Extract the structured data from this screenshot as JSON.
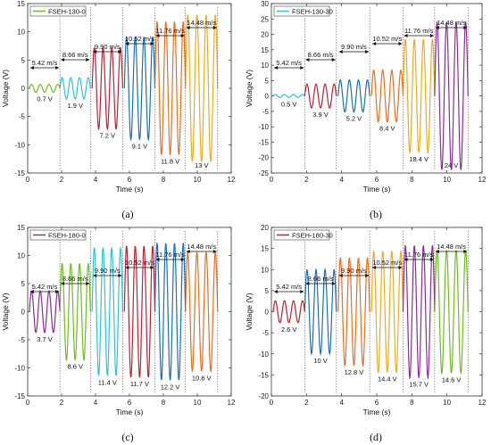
{
  "chart_data": [
    {
      "id": "a",
      "type": "line",
      "caption": "(a)",
      "legend": "FSEH-130-0",
      "xlabel": "Time (s)",
      "ylabel": "Voltage (V)",
      "xlim": [
        0,
        12
      ],
      "ylim": [
        -15,
        15
      ],
      "xticks": [
        "0",
        "2",
        "4",
        "6",
        "8",
        "10",
        "12"
      ],
      "yticks": [
        "-15",
        "-10",
        "-5",
        "0",
        "5",
        "10",
        "15"
      ],
      "grid": false,
      "legend_position": "top-left",
      "segments": [
        {
          "wind": "5.42 m/s",
          "t_start": 0.1,
          "t_end": 1.9,
          "amplitude_label": "0.7 V",
          "amplitude": 0.7,
          "color": "#6cbf1d"
        },
        {
          "wind": "8.66 m/s",
          "t_start": 1.9,
          "t_end": 3.7,
          "amplitude_label": "1.9 V",
          "amplitude": 1.9,
          "color": "#2cc4dd"
        },
        {
          "wind": "9.90 m/s",
          "t_start": 3.8,
          "t_end": 5.6,
          "amplitude_label": "7.2 V",
          "amplitude": 7.2,
          "color": "#c61e2f"
        },
        {
          "wind": "10.52 m/s",
          "t_start": 5.7,
          "t_end": 7.5,
          "amplitude_label": "9.1 V",
          "amplitude": 9.1,
          "color": "#1a6fbd"
        },
        {
          "wind": "11.76 m/s",
          "t_start": 7.5,
          "t_end": 9.3,
          "amplitude_label": "11.8 V",
          "amplitude": 11.8,
          "color": "#f26b1d"
        },
        {
          "wind": "14.48 m/s",
          "t_start": 9.3,
          "t_end": 11.2,
          "amplitude_label": "13 V",
          "amplitude": 13,
          "color": "#f2a91d"
        }
      ]
    },
    {
      "id": "b",
      "type": "line",
      "caption": "(b)",
      "legend": "FSEH-130-30",
      "xlabel": "Time (s)",
      "ylabel": "Voltage (V)",
      "xlim": [
        0,
        12
      ],
      "ylim": [
        -25,
        30
      ],
      "xticks": [
        "0",
        "2",
        "4",
        "6",
        "8",
        "10",
        "12"
      ],
      "yticks": [
        "-25",
        "-20",
        "-15",
        "-10",
        "-5",
        "0",
        "5",
        "10",
        "15",
        "20",
        "25",
        "30"
      ],
      "grid": false,
      "legend_position": "top-left",
      "segments": [
        {
          "wind": "5.42 m/s",
          "t_start": 0.1,
          "t_end": 1.9,
          "amplitude_label": "0.5 V",
          "amplitude": 0.5,
          "color": "#2cc4dd"
        },
        {
          "wind": "8.66 m/s",
          "t_start": 1.9,
          "t_end": 3.7,
          "amplitude_label": "3.9 V",
          "amplitude": 3.9,
          "color": "#c61e2f"
        },
        {
          "wind": "9.90 m/s",
          "t_start": 3.8,
          "t_end": 5.6,
          "amplitude_label": "5.2 V",
          "amplitude": 5.2,
          "color": "#1a6fbd"
        },
        {
          "wind": "10.52 m/s",
          "t_start": 5.7,
          "t_end": 7.5,
          "amplitude_label": "8.4 V",
          "amplitude": 8.4,
          "color": "#f26b1d"
        },
        {
          "wind": "11.76 m/s",
          "t_start": 7.5,
          "t_end": 9.3,
          "amplitude_label": "18.4 V",
          "amplitude": 18.4,
          "color": "#f2a91d"
        },
        {
          "wind": "14.48 m/s",
          "t_start": 9.3,
          "t_end": 11.2,
          "amplitude_label": "24 V",
          "amplitude": 24,
          "color": "#8e2a9c"
        }
      ]
    },
    {
      "id": "c",
      "type": "line",
      "caption": "(c)",
      "legend": "FSEH-180-0",
      "xlabel": "Time (s)",
      "ylabel": "Voltage (V)",
      "xlim": [
        0,
        12
      ],
      "ylim": [
        -15,
        15
      ],
      "xticks": [
        "0",
        "2",
        "4",
        "6",
        "8",
        "10",
        "12"
      ],
      "yticks": [
        "-15",
        "-10",
        "-5",
        "0",
        "5",
        "10",
        "15"
      ],
      "grid": false,
      "legend_position": "top-left",
      "segments": [
        {
          "wind": "5.42 m/s",
          "t_start": 0.1,
          "t_end": 1.9,
          "amplitude_label": "3.7 V",
          "amplitude": 3.7,
          "color": "#8e2a9c"
        },
        {
          "wind": "8.66 m/s",
          "t_start": 1.9,
          "t_end": 3.7,
          "amplitude_label": "8.6 V",
          "amplitude": 8.6,
          "color": "#6cbf1d"
        },
        {
          "wind": "9.90 m/s",
          "t_start": 3.8,
          "t_end": 5.6,
          "amplitude_label": "11.4 V",
          "amplitude": 11.4,
          "color": "#2cc4dd"
        },
        {
          "wind": "10.52 m/s",
          "t_start": 5.7,
          "t_end": 7.5,
          "amplitude_label": "11.7 V",
          "amplitude": 11.7,
          "color": "#c61e2f"
        },
        {
          "wind": "11.76 m/s",
          "t_start": 7.5,
          "t_end": 9.3,
          "amplitude_label": "12.2 V",
          "amplitude": 12.2,
          "color": "#1a6fbd"
        },
        {
          "wind": "14.48 m/s",
          "t_start": 9.3,
          "t_end": 11.2,
          "amplitude_label": "10.6 V",
          "amplitude": 10.6,
          "color": "#f26b1d"
        }
      ]
    },
    {
      "id": "d",
      "type": "line",
      "caption": "(d)",
      "legend": "FSEH-180-30",
      "xlabel": "Time (s)",
      "ylabel": "Voltage (V)",
      "xlim": [
        0,
        12
      ],
      "ylim": [
        -20,
        20
      ],
      "xticks": [
        "0",
        "2",
        "4",
        "6",
        "8",
        "10",
        "12"
      ],
      "yticks": [
        "-20",
        "-15",
        "-10",
        "-5",
        "0",
        "5",
        "10",
        "15",
        "20"
      ],
      "grid": false,
      "legend_position": "top-left",
      "segments": [
        {
          "wind": "5.42 m/s",
          "t_start": 0.1,
          "t_end": 1.9,
          "amplitude_label": "2.6 V",
          "amplitude": 2.6,
          "color": "#c61e2f"
        },
        {
          "wind": "8.66 m/s",
          "t_start": 1.9,
          "t_end": 3.7,
          "amplitude_label": "10 V",
          "amplitude": 10,
          "color": "#1a6fbd"
        },
        {
          "wind": "9.90 m/s",
          "t_start": 3.8,
          "t_end": 5.6,
          "amplitude_label": "12.8 V",
          "amplitude": 12.8,
          "color": "#f26b1d"
        },
        {
          "wind": "10.52 m/s",
          "t_start": 5.7,
          "t_end": 7.5,
          "amplitude_label": "14.4 V",
          "amplitude": 14.4,
          "color": "#f2a91d"
        },
        {
          "wind": "11.76 m/s",
          "t_start": 7.5,
          "t_end": 9.3,
          "amplitude_label": "15.7 V",
          "amplitude": 15.7,
          "color": "#8e2a9c"
        },
        {
          "wind": "14.48 m/s",
          "t_start": 9.3,
          "t_end": 11.2,
          "amplitude_label": "14.6 V",
          "amplitude": 14.6,
          "color": "#6cbf1d"
        }
      ]
    }
  ]
}
